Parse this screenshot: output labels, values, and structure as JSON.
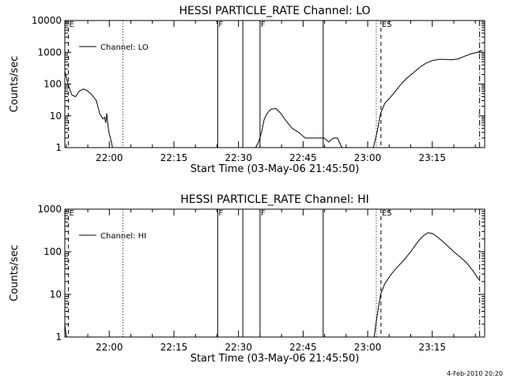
{
  "footer": {
    "date_stamp": "4-Feb-2010 20:20"
  },
  "chart_data": [
    {
      "type": "line",
      "title": "HESSI PARTICLE_RATE Channel: LO",
      "xlabel": "Start Time (03-May-06 21:45:50)",
      "ylabel": "Counts/sec",
      "yscale": "log",
      "xlim": [
        "21:49:40",
        "23:27:10"
      ],
      "ylim": [
        1,
        10000
      ],
      "xticks": [
        "22:00",
        "22:15",
        "22:30",
        "22:45",
        "23:00",
        "23:15"
      ],
      "yticks": [
        "1",
        "10",
        "100",
        "1000",
        "10000"
      ],
      "legend": {
        "label": "Channel: LO",
        "placement": "top-left"
      },
      "series": [
        {
          "name": "Channel: LO",
          "segments": [
            {
              "x": [
                "21:49:40",
                "21:50:30",
                "21:51:20",
                "21:52:10",
                "21:53:00",
                "21:54:00",
                "21:55:00",
                "21:56:00",
                "21:57:00",
                "21:57:45",
                "21:58:30",
                "21:58:55",
                "21:59:10",
                "21:59:25",
                "21:59:40",
                "21:59:55",
                "22:00:20",
                "22:00:45"
              ],
              "y": [
                250,
                90,
                45,
                40,
                60,
                70,
                60,
                45,
                30,
                12,
                8,
                9,
                6,
                12,
                5,
                3,
                1.8,
                1
              ]
            },
            {
              "x": [
                "22:34:00",
                "22:34:40",
                "22:35:20",
                "22:36:00",
                "22:36:40",
                "22:37:30",
                "22:38:40",
                "22:39:50",
                "22:41:00",
                "22:42:30",
                "22:44:00",
                "22:45:30",
                "22:46:40",
                "22:47:50",
                "22:49:00",
                "22:49:50",
                "22:51:00",
                "22:52:00",
                "22:53:00",
                "22:54:00"
              ],
              "y": [
                1,
                1.5,
                3,
                8,
                12,
                16,
                17,
                12,
                7,
                4,
                3,
                2,
                2,
                2,
                2,
                2,
                1.5,
                2,
                2,
                1
              ]
            },
            {
              "x": [
                "23:01:20",
                "23:02:10",
                "23:03:00",
                "23:04:00",
                "23:05:00",
                "23:06:00",
                "23:07:30",
                "23:09:00",
                "23:10:30",
                "23:12:00",
                "23:13:30",
                "23:15:00",
                "23:16:30",
                "23:18:00",
                "23:19:30",
                "23:21:00",
                "23:22:30",
                "23:24:00",
                "23:25:30",
                "23:26:10",
                "23:26:40"
              ],
              "y": [
                1,
                3,
                12,
                25,
                35,
                50,
                90,
                150,
                220,
                330,
                450,
                550,
                600,
                600,
                580,
                620,
                750,
                900,
                1000,
                1100,
                1150
              ]
            }
          ]
        }
      ],
      "markers": [
        {
          "time": "21:50:30",
          "style": "dashed",
          "label": "E"
        },
        {
          "time": "22:03:10",
          "style": "dotted",
          "label": ""
        },
        {
          "time": "22:25:10",
          "style": "solid",
          "label": "F"
        },
        {
          "time": "22:31:00",
          "style": "solid",
          "label": ""
        },
        {
          "time": "22:35:00",
          "style": "solid",
          "label": "F"
        },
        {
          "time": "22:49:40",
          "style": "solid",
          "label": ""
        },
        {
          "time": "23:02:00",
          "style": "dotted",
          "label": ""
        },
        {
          "time": "23:03:05",
          "style": "dashed",
          "label": "ES"
        },
        {
          "time": "23:26:00",
          "style": "dash-dot",
          "label": ""
        }
      ]
    },
    {
      "type": "line",
      "title": "HESSI PARTICLE_RATE Channel: HI",
      "xlabel": "Start Time (03-May-06 21:45:50)",
      "ylabel": "Counts/sec",
      "yscale": "log",
      "xlim": [
        "21:49:40",
        "23:27:10"
      ],
      "ylim": [
        1,
        1000
      ],
      "xticks": [
        "22:00",
        "22:15",
        "22:30",
        "22:45",
        "23:00",
        "23:15"
      ],
      "yticks": [
        "1",
        "10",
        "100",
        "1000"
      ],
      "legend": {
        "label": "Channel: HI",
        "placement": "top-left"
      },
      "series": [
        {
          "name": "Channel: HI",
          "segments": [
            {
              "x": [
                "21:49:40",
                "21:49:55",
                "21:50:05"
              ],
              "y": [
                2,
                1.2,
                1
              ]
            },
            {
              "x": [
                "23:01:30",
                "23:02:10",
                "23:03:00",
                "23:04:00",
                "23:05:30",
                "23:07:00",
                "23:08:30",
                "23:10:00",
                "23:11:00",
                "23:12:00",
                "23:13:00",
                "23:14:00",
                "23:15:00",
                "23:16:00",
                "23:17:00",
                "23:18:30",
                "23:20:00",
                "23:21:30",
                "23:23:00",
                "23:24:30",
                "23:25:50"
              ],
              "y": [
                1,
                3,
                10,
                18,
                30,
                45,
                65,
                100,
                140,
                190,
                240,
                280,
                270,
                230,
                190,
                140,
                100,
                75,
                55,
                35,
                22
              ]
            }
          ]
        }
      ],
      "markers": [
        {
          "time": "21:50:30",
          "style": "dashed",
          "label": "E"
        },
        {
          "time": "22:03:10",
          "style": "dotted",
          "label": ""
        },
        {
          "time": "22:25:10",
          "style": "solid",
          "label": "F"
        },
        {
          "time": "22:31:00",
          "style": "solid",
          "label": ""
        },
        {
          "time": "22:35:00",
          "style": "solid",
          "label": "F"
        },
        {
          "time": "22:49:40",
          "style": "solid",
          "label": ""
        },
        {
          "time": "23:02:00",
          "style": "dotted",
          "label": ""
        },
        {
          "time": "23:03:05",
          "style": "dashed",
          "label": "ES"
        },
        {
          "time": "23:26:00",
          "style": "dash-dot",
          "label": ""
        }
      ]
    }
  ]
}
